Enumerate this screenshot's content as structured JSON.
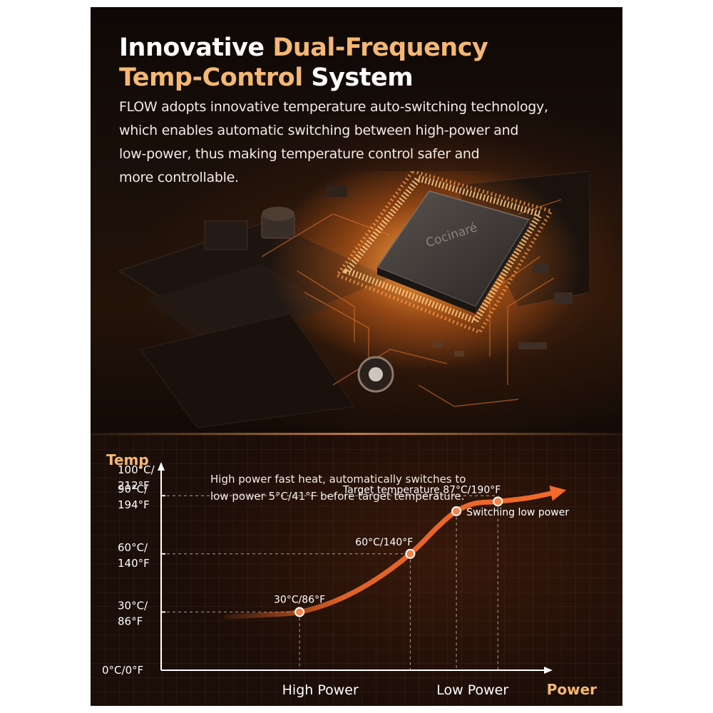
{
  "header": {
    "title_part1": "Innovative ",
    "title_highlight1": "Dual-Frequency",
    "title_highlight2": "Temp-Control",
    "title_part2": " System",
    "description_lines": [
      "FLOW adopts innovative temperature auto-switching technology,",
      "which enables automatic switching between high-power and",
      "low-power, thus making temperature control safer and",
      "more controllable."
    ]
  },
  "chip": {
    "brand": "Cocinaré"
  },
  "colors": {
    "accent": "#f4b874",
    "curve": "#f26a2b",
    "background": "#0c0705",
    "axis": "#ffffff"
  },
  "chart_data": {
    "type": "line",
    "title": "",
    "ylabel": "Temp",
    "xlabel": "Power",
    "note_lines": [
      "High power fast heat, automatically switches to",
      "low power 5°C/41°F before target temperature."
    ],
    "y_ticks": [
      {
        "value": 0,
        "lines": [
          "0°C/0°F"
        ]
      },
      {
        "value": 30,
        "lines": [
          "30°C/",
          "86°F"
        ]
      },
      {
        "value": 60,
        "lines": [
          "60°C/",
          "140°F"
        ]
      },
      {
        "value": 90,
        "lines": [
          "90°C/",
          "194°F"
        ]
      },
      {
        "value": 100,
        "lines": [
          "100°C/",
          "212°F"
        ]
      }
    ],
    "x_ranges": [
      {
        "label": "High Power",
        "from": 0.15,
        "to": 0.54
      },
      {
        "label": "Low Power",
        "from": 0.54,
        "to": 0.81
      }
    ],
    "points": [
      {
        "x": 0.3,
        "y": 30,
        "label": "30°C/86°F",
        "label_pos": "above"
      },
      {
        "x": 0.54,
        "y": 60,
        "label": "60°C/140°F",
        "label_pos": "above-left"
      },
      {
        "x": 0.64,
        "y": 82,
        "label": "Switching low power",
        "label_pos": "right"
      },
      {
        "x": 0.73,
        "y": 87,
        "label": "Target temperature 87°C/190°F",
        "label_pos": "above-left"
      }
    ],
    "curve": [
      [
        0.14,
        27.5
      ],
      [
        0.22,
        28.5
      ],
      [
        0.3,
        30
      ],
      [
        0.38,
        36
      ],
      [
        0.46,
        46
      ],
      [
        0.54,
        60
      ],
      [
        0.6,
        74
      ],
      [
        0.64,
        82
      ],
      [
        0.68,
        86
      ],
      [
        0.73,
        87
      ],
      [
        0.8,
        89
      ],
      [
        0.86,
        92
      ]
    ],
    "xlim": [
      0,
      1
    ],
    "ylim": [
      0,
      100
    ],
    "grid": true
  }
}
